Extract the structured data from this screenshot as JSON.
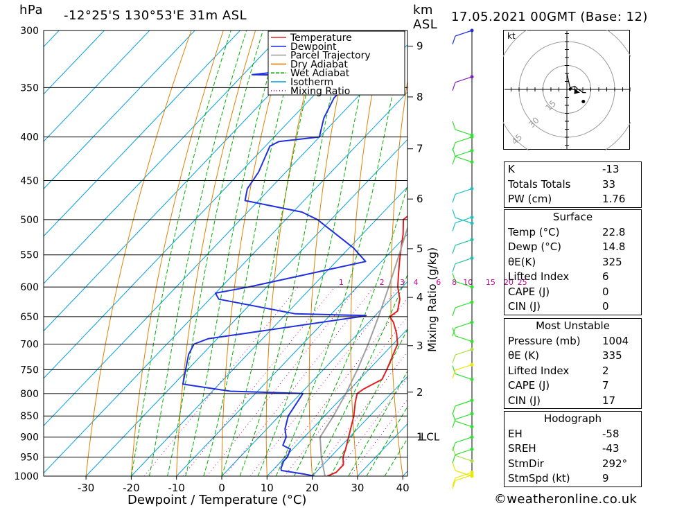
{
  "header": {
    "hpa_label": "hPa",
    "location": "-12°25'S  130°53'E  31m  ASL",
    "km_label": "km",
    "asl_label": "ASL",
    "datetime": "17.05.2021  00GMT  (Base: 12)"
  },
  "footer": {
    "credit": "©weatheronline.co.uk"
  },
  "hodograph": {
    "unit": "kt",
    "ring_labels": [
      "15",
      "30",
      "45"
    ],
    "points_kt": [
      [
        0,
        10
      ],
      [
        2,
        1
      ],
      [
        5,
        2
      ],
      [
        7,
        0
      ],
      [
        9,
        -1
      ],
      [
        10,
        -2
      ],
      [
        12,
        -2
      ]
    ],
    "storm_motion": [
      8,
      -2
    ],
    "end_point": [
      6,
      -5
    ]
  },
  "indices": {
    "general": [
      {
        "label": "K",
        "value": "-13"
      },
      {
        "label": "Totals Totals",
        "value": "33"
      },
      {
        "label": "PW (cm)",
        "value": "1.76"
      }
    ],
    "surface": {
      "title": "Surface",
      "rows": [
        {
          "label": "Temp (°C)",
          "value": "22.8"
        },
        {
          "label": "Dewp (°C)",
          "value": "14.8"
        },
        {
          "label": "θE(K)",
          "value": "325"
        },
        {
          "label": "Lifted Index",
          "value": "6"
        },
        {
          "label": "CAPE (J)",
          "value": "0"
        },
        {
          "label": "CIN (J)",
          "value": "0"
        }
      ]
    },
    "most_unstable": {
      "title": "Most Unstable",
      "rows": [
        {
          "label": "Pressure (mb)",
          "value": "1004"
        },
        {
          "label": "θE (K)",
          "value": "335"
        },
        {
          "label": "Lifted Index",
          "value": "2"
        },
        {
          "label": "CAPE (J)",
          "value": "7"
        },
        {
          "label": "CIN (J)",
          "value": "17"
        }
      ]
    },
    "hodograph": {
      "title": "Hodograph",
      "rows": [
        {
          "label": "EH",
          "value": "-58"
        },
        {
          "label": "SREH",
          "value": "-43"
        },
        {
          "label": "StmDir",
          "value": "292°"
        },
        {
          "label": "StmSpd (kt)",
          "value": "9"
        }
      ]
    }
  },
  "chart_data": {
    "type": "line",
    "subtype": "skew-T log-P diagram",
    "xlabel": "Dewpoint / Temperature (°C)",
    "ylabel": "hPa",
    "right_label": "km ASL",
    "mixing_ratio_label": "Mixing Ratio (g/kg)",
    "x_ticks": [
      -30,
      -20,
      -10,
      0,
      10,
      20,
      30,
      40
    ],
    "p_ticks": [
      300,
      350,
      400,
      450,
      500,
      550,
      600,
      650,
      700,
      750,
      800,
      850,
      900,
      950,
      1000
    ],
    "p_range": [
      1000,
      300
    ],
    "km_ticks": [
      {
        "label": "1",
        "p": 900
      },
      {
        "label": "2",
        "p": 797
      },
      {
        "label": "3",
        "p": 703
      },
      {
        "label": "4",
        "p": 617
      },
      {
        "label": "5",
        "p": 541
      },
      {
        "label": "6",
        "p": 473
      },
      {
        "label": "7",
        "p": 413
      },
      {
        "label": "8",
        "p": 359
      },
      {
        "label": "9",
        "p": 313
      }
    ],
    "lcl": {
      "label": "LCL",
      "p": 900
    },
    "mixing_ratio_labels": [
      {
        "label": "1",
        "t": -13.5
      },
      {
        "label": "2",
        "t": -4.5
      },
      {
        "label": "3",
        "t": 0
      },
      {
        "label": "4",
        "t": 3
      },
      {
        "label": "6",
        "t": 8
      },
      {
        "label": "8",
        "t": 11.5
      },
      {
        "label": "10",
        "t": 14.5
      },
      {
        "label": "15",
        "t": 19.5
      },
      {
        "label": "20",
        "t": 23.5
      },
      {
        "label": "25",
        "t": 26.5
      }
    ],
    "legend": [
      {
        "name": "Temperature",
        "color": "#e02020"
      },
      {
        "name": "Dewpoint",
        "color": "#2030e0"
      },
      {
        "name": "Parcel Trajectory",
        "color": "#a0a0a0"
      },
      {
        "name": "Dry Adiabat",
        "color": "#e08000"
      },
      {
        "name": "Wet Adiabat",
        "color": "#00b000"
      },
      {
        "name": "Isotherm",
        "color": "#00a0e0"
      },
      {
        "name": "Mixing Ratio",
        "color": "#cc0099"
      }
    ],
    "series": [
      {
        "name": "Temperature",
        "points": [
          [
            1000,
            23.3
          ],
          [
            990,
            24.5
          ],
          [
            970,
            24.5
          ],
          [
            950,
            22.8
          ],
          [
            930,
            21.7
          ],
          [
            900,
            19.8
          ],
          [
            850,
            16.5
          ],
          [
            820,
            14
          ],
          [
            800,
            12.5
          ],
          [
            790,
            13
          ],
          [
            770,
            15
          ],
          [
            750,
            14
          ],
          [
            700,
            11
          ],
          [
            680,
            8.5
          ],
          [
            660,
            5.5
          ],
          [
            650,
            3.5
          ],
          [
            640,
            4
          ],
          [
            620,
            2
          ],
          [
            600,
            -1
          ],
          [
            580,
            -3.5
          ],
          [
            560,
            -6
          ],
          [
            540,
            -8.5
          ],
          [
            520,
            -11
          ],
          [
            500,
            -14
          ],
          [
            490,
            -13.5
          ],
          [
            475,
            -14
          ],
          [
            460,
            -17
          ],
          [
            450,
            -17.5
          ],
          [
            420,
            -22
          ],
          [
            400,
            -25
          ],
          [
            380,
            -30
          ],
          [
            370,
            -32.5
          ]
        ]
      },
      {
        "name": "Dewpoint",
        "points": [
          [
            1000,
            20.5
          ],
          [
            995,
            18
          ],
          [
            985,
            12
          ],
          [
            980,
            11.5
          ],
          [
            960,
            10.5
          ],
          [
            950,
            10.5
          ],
          [
            930,
            9.5
          ],
          [
            920,
            7
          ],
          [
            900,
            6
          ],
          [
            880,
            4
          ],
          [
            850,
            2
          ],
          [
            800,
            0.5
          ],
          [
            795,
            -16
          ],
          [
            780,
            -28
          ],
          [
            720,
            -33
          ],
          [
            700,
            -34
          ],
          [
            690,
            -32
          ],
          [
            650,
            -3
          ],
          [
            648,
            -2
          ],
          [
            645,
            -18
          ],
          [
            620,
            -38
          ],
          [
            610,
            -40
          ],
          [
            600,
            -34
          ],
          [
            560,
            -13.5
          ],
          [
            540,
            -19
          ],
          [
            500,
            -33
          ],
          [
            490,
            -38
          ],
          [
            475,
            -53
          ],
          [
            460,
            -55
          ],
          [
            440,
            -56
          ],
          [
            410,
            -59
          ],
          [
            405,
            -58
          ],
          [
            400,
            -50
          ],
          [
            380,
            -53
          ],
          [
            360,
            -55
          ],
          [
            345,
            -55
          ],
          [
            340,
            -52
          ],
          [
            338,
            -78
          ],
          [
            330,
            -62
          ],
          [
            315,
            -61
          ],
          [
            300,
            -66
          ]
        ]
      },
      {
        "name": "Parcel Trajectory",
        "points": [
          [
            1000,
            22.8
          ],
          [
            950,
            18
          ],
          [
            900,
            13.5
          ],
          [
            850,
            12
          ],
          [
            800,
            10
          ],
          [
            750,
            7.5
          ],
          [
            700,
            4.5
          ],
          [
            650,
            1
          ],
          [
            600,
            -3
          ],
          [
            550,
            -7.5
          ],
          [
            500,
            -12.5
          ],
          [
            450,
            -18
          ],
          [
            400,
            -24.5
          ],
          [
            350,
            -32
          ],
          [
            300,
            -42
          ]
        ]
      }
    ],
    "wind_barbs": [
      {
        "p": 1000,
        "color": "#e8e800"
      },
      {
        "p": 997,
        "color": "#e8e800"
      },
      {
        "p": 990,
        "color": "#e8e800"
      },
      {
        "p": 960,
        "color": "#a8e040"
      },
      {
        "p": 930,
        "color": "#30e030"
      },
      {
        "p": 900,
        "color": "#30e030"
      },
      {
        "p": 875,
        "color": "#30e030"
      },
      {
        "p": 845,
        "color": "#30e030"
      },
      {
        "p": 815,
        "color": "#30e030"
      },
      {
        "p": 770,
        "color": "#30e030"
      },
      {
        "p": 740,
        "color": "#e8e800"
      },
      {
        "p": 710,
        "color": "#a8e040"
      },
      {
        "p": 695,
        "color": "#30e030"
      },
      {
        "p": 660,
        "color": "#30e030"
      },
      {
        "p": 625,
        "color": "#30e030"
      },
      {
        "p": 600,
        "color": "#30e030"
      },
      {
        "p": 555,
        "color": "#20c0a0"
      },
      {
        "p": 528,
        "color": "#20c0a0"
      },
      {
        "p": 505,
        "color": "#20c0c0"
      },
      {
        "p": 497,
        "color": "#20c0c0"
      },
      {
        "p": 460,
        "color": "#20c0c0"
      },
      {
        "p": 428,
        "color": "#30e030"
      },
      {
        "p": 415,
        "color": "#30e030"
      },
      {
        "p": 400,
        "color": "#30e030"
      },
      {
        "p": 398,
        "color": "#30e030"
      },
      {
        "p": 340,
        "color": "#8020c0"
      },
      {
        "p": 300,
        "color": "#2030e0"
      }
    ]
  }
}
